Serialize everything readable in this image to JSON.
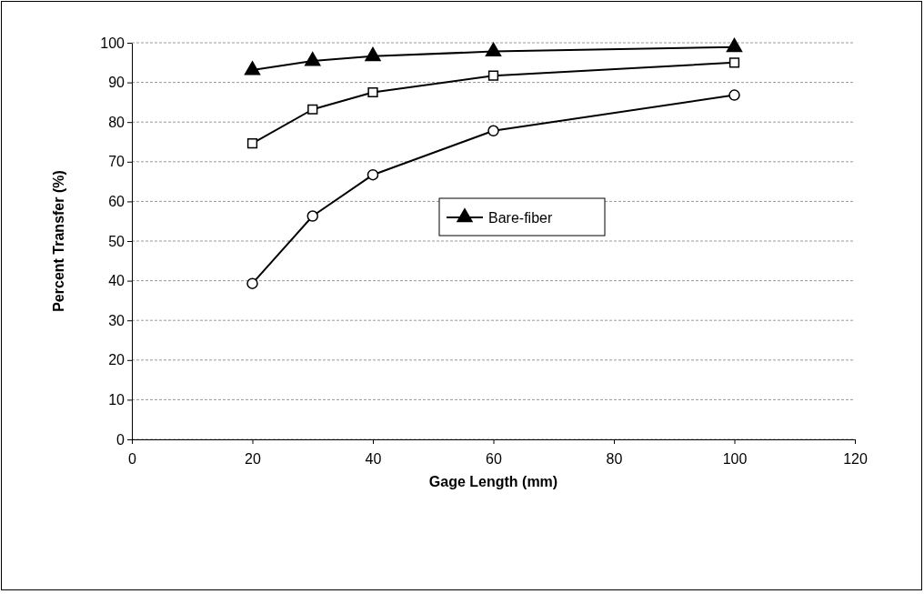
{
  "chart_data": {
    "type": "line",
    "xlabel": "Gage Length (mm)",
    "ylabel": "Percent Transfer (%)",
    "x": [
      20,
      30,
      40,
      60,
      100
    ],
    "series": [
      {
        "color": "#000000",
        "marker": "circle",
        "values": [
          39.3,
          56.3,
          66.7,
          77.8,
          86.8
        ]
      },
      {
        "color": "#000000",
        "marker": "square",
        "values": [
          74.6,
          83.2,
          87.5,
          91.7,
          95.0
        ]
      },
      {
        "name": "Bare-fiber",
        "color": "#000000",
        "marker": "triangle",
        "values": [
          93.1,
          95.4,
          96.6,
          97.8,
          98.9
        ]
      }
    ],
    "xlim": [
      0,
      120
    ],
    "xticks": [
      0,
      20,
      40,
      60,
      80,
      100,
      120
    ],
    "ylim": [
      0,
      100
    ],
    "yticks": [
      0,
      10,
      20,
      30,
      40,
      50,
      60,
      70,
      80,
      90,
      100
    ],
    "grid": "y",
    "legend": "right",
    "line_style": "solid"
  }
}
